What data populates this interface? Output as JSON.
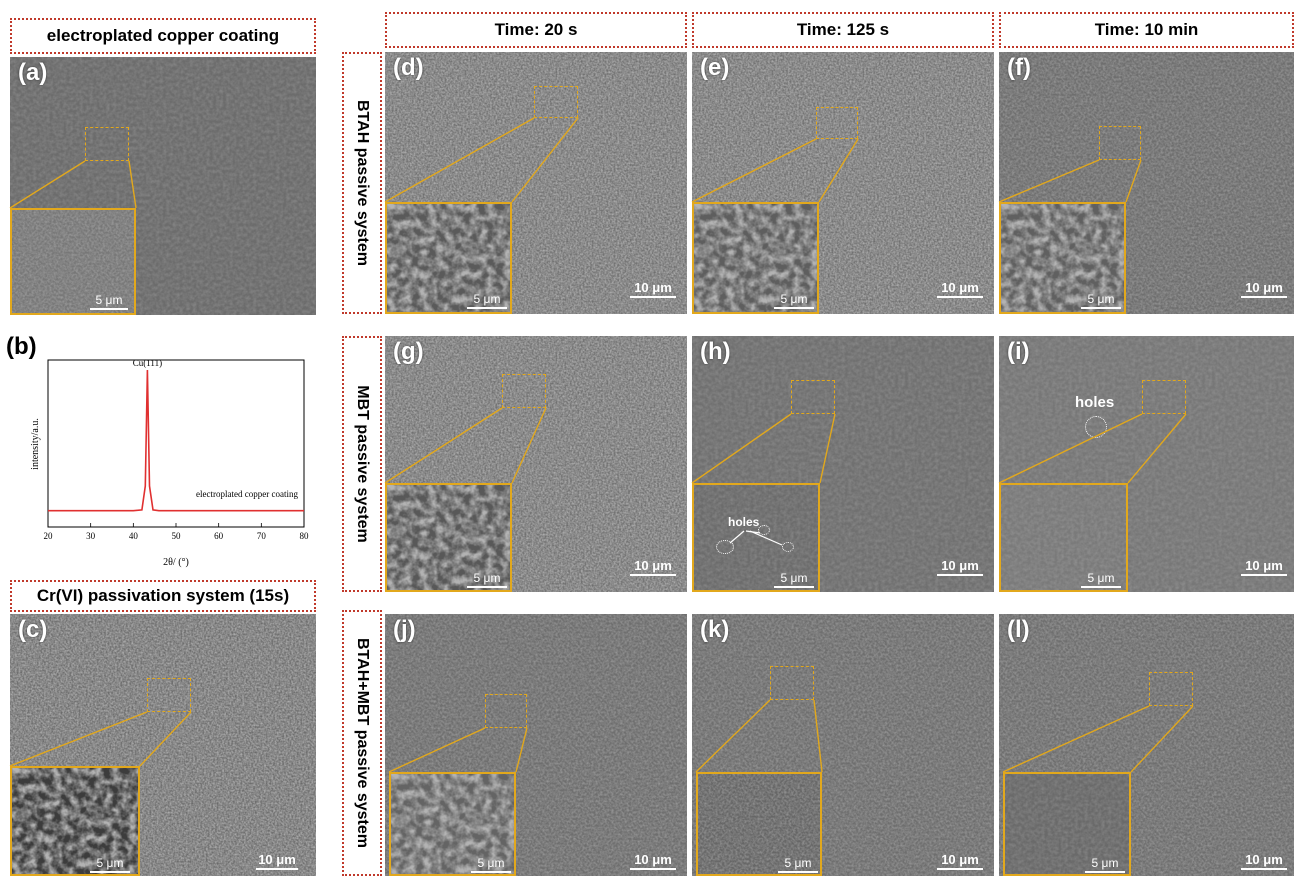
{
  "col_headers": [
    "Time: 20 s",
    "Time: 125 s",
    "Time: 10 min"
  ],
  "row_headers": [
    "BTAH  passive system",
    "MBT  passive system",
    "BTAH+MBT  passive system"
  ],
  "left_titles": {
    "a": "electroplated copper coating",
    "c": "Cr(VI) passivation system (15s)"
  },
  "panel_labels": {
    "a": "(a)",
    "b": "(b)",
    "c": "(c)",
    "d": "(d)",
    "e": "(e)",
    "f": "(f)",
    "g": "(g)",
    "h": "(h)",
    "i": "(i)",
    "j": "(j)",
    "k": "(k)",
    "l": "(l)"
  },
  "scale": {
    "inset": "5 μm",
    "main": "10 μm"
  },
  "annotations": {
    "holes": "holes"
  },
  "chart_data": {
    "type": "line",
    "title": "",
    "xlabel": "2θ/ (°)",
    "ylabel": "intensity/a.u.",
    "xlim": [
      20,
      80
    ],
    "xticks": [
      20,
      30,
      40,
      50,
      60,
      70,
      80
    ],
    "peak_label": "Cu(111)",
    "series": [
      {
        "name": "electroplated copper coating",
        "color": "#e03030",
        "x": [
          20,
          40,
          42,
          42.8,
          43.3,
          43.8,
          44.6,
          46,
          60,
          80
        ],
        "y": [
          0.03,
          0.03,
          0.035,
          0.2,
          1.0,
          0.2,
          0.035,
          0.03,
          0.03,
          0.03
        ]
      }
    ],
    "grid": false
  }
}
